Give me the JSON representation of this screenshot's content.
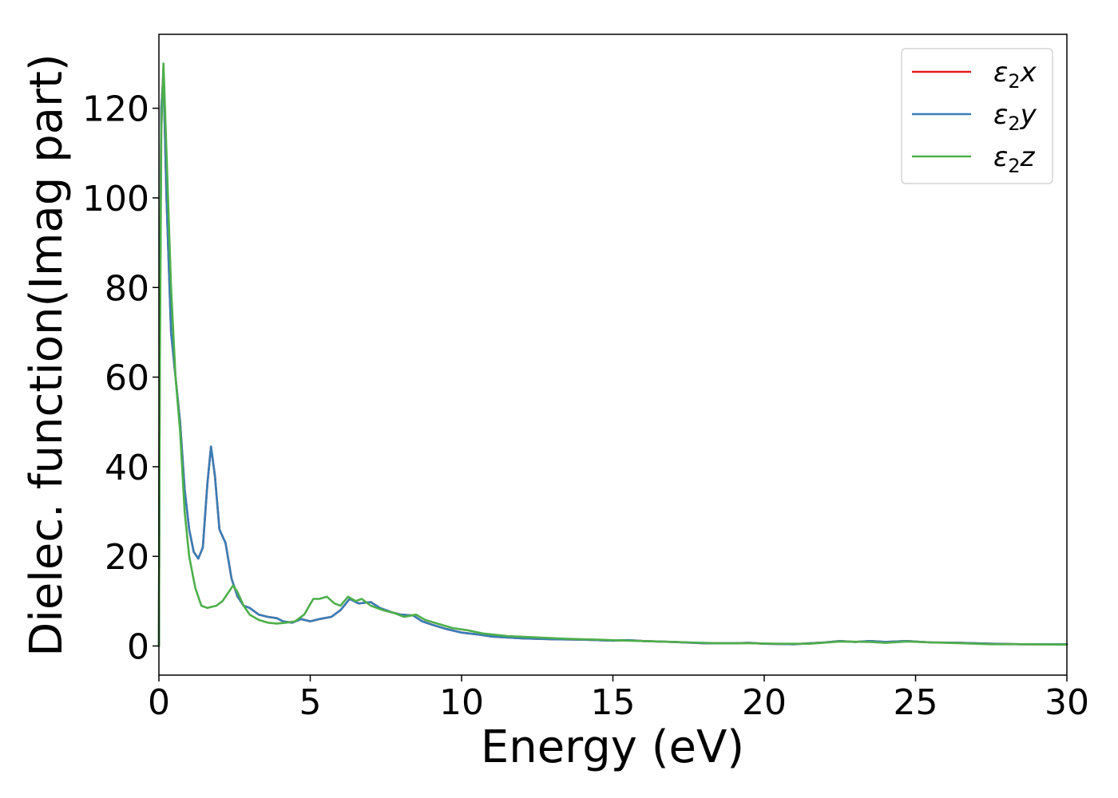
{
  "chart_data": {
    "type": "line",
    "title": "",
    "xlabel": "Energy (eV)",
    "ylabel": "Dielec. function(Imag part)",
    "xlim": [
      0,
      30
    ],
    "ylim": [
      -6.5,
      136.5
    ],
    "xticks": [
      0,
      5,
      10,
      15,
      20,
      25,
      30
    ],
    "xtick_labels": [
      "0",
      "5",
      "10",
      "15",
      "20",
      "25",
      "30"
    ],
    "yticks": [
      0,
      20,
      40,
      60,
      80,
      100,
      120
    ],
    "ytick_labels": [
      "0",
      "20",
      "40",
      "60",
      "80",
      "100",
      "120"
    ],
    "grid": false,
    "legend_position": "top-right",
    "series": [
      {
        "name": "ε2x",
        "legend_main": "ε",
        "legend_sub": "2",
        "legend_suffix": "x",
        "color": "#e41a1c",
        "x": [
          0,
          0.03,
          0.08,
          0.15,
          0.25,
          0.4,
          0.55,
          0.7,
          0.85,
          1.0,
          1.15,
          1.3,
          1.45,
          1.6,
          1.72,
          1.85,
          2.0,
          2.2,
          2.4,
          2.6,
          2.8,
          3.0,
          3.3,
          3.6,
          3.9,
          4.1,
          4.4,
          4.7,
          5.0,
          5.3,
          5.7,
          6.0,
          6.3,
          6.6,
          7.0,
          7.3,
          7.7,
          8.0,
          8.4,
          8.7,
          9.0,
          9.5,
          10.0,
          10.5,
          11.0,
          12.0,
          13.0,
          14.0,
          15.0,
          15.5,
          16.0,
          17.0,
          18.0,
          19.0,
          19.5,
          20.0,
          21.0,
          22.0,
          22.5,
          23.0,
          23.5,
          24.0,
          24.7,
          25.5,
          26.5,
          27.5,
          28.5,
          30.0
        ],
        "y": [
          0,
          70,
          120,
          128,
          100,
          70,
          60,
          50,
          35,
          26,
          21,
          19.5,
          22,
          36,
          44.5,
          38,
          26,
          23,
          15,
          11,
          9,
          8.5,
          7,
          6.5,
          6.2,
          5.5,
          5.2,
          6,
          5.5,
          6,
          6.5,
          8,
          10.5,
          9.5,
          9.8,
          8.5,
          7.5,
          7,
          6.8,
          5.5,
          4.8,
          3.8,
          3,
          2.6,
          2.1,
          1.7,
          1.5,
          1.4,
          1.2,
          1.3,
          1.1,
          0.9,
          0.6,
          0.6,
          0.7,
          0.5,
          0.4,
          0.8,
          1.1,
          0.9,
          1.1,
          0.9,
          1.1,
          0.8,
          0.7,
          0.5,
          0.4,
          0.4
        ]
      },
      {
        "name": "ε2y",
        "legend_main": "ε",
        "legend_sub": "2",
        "legend_suffix": "y",
        "color": "#377eb8",
        "x": [
          0,
          0.03,
          0.08,
          0.15,
          0.25,
          0.4,
          0.55,
          0.7,
          0.85,
          1.0,
          1.15,
          1.3,
          1.45,
          1.6,
          1.72,
          1.85,
          2.0,
          2.2,
          2.4,
          2.6,
          2.8,
          3.0,
          3.3,
          3.6,
          3.9,
          4.1,
          4.4,
          4.7,
          5.0,
          5.3,
          5.7,
          6.0,
          6.3,
          6.6,
          7.0,
          7.3,
          7.7,
          8.0,
          8.4,
          8.7,
          9.0,
          9.5,
          10.0,
          10.5,
          11.0,
          12.0,
          13.0,
          14.0,
          15.0,
          15.5,
          16.0,
          17.0,
          18.0,
          19.0,
          19.5,
          20.0,
          21.0,
          22.0,
          22.5,
          23.0,
          23.5,
          24.0,
          24.7,
          25.5,
          26.5,
          27.5,
          28.5,
          30.0
        ],
        "y": [
          0,
          70,
          120,
          128,
          100,
          70,
          60,
          50,
          35,
          26,
          21,
          19.5,
          22,
          36,
          44.5,
          38,
          26,
          23,
          15,
          11,
          9,
          8.5,
          7,
          6.5,
          6.2,
          5.5,
          5.2,
          6,
          5.5,
          6,
          6.5,
          8,
          10.5,
          9.5,
          9.8,
          8.5,
          7.5,
          7,
          6.8,
          5.5,
          4.8,
          3.8,
          3,
          2.6,
          2.1,
          1.7,
          1.5,
          1.4,
          1.2,
          1.3,
          1.1,
          0.9,
          0.6,
          0.6,
          0.7,
          0.5,
          0.4,
          0.8,
          1.1,
          0.9,
          1.1,
          0.9,
          1.1,
          0.8,
          0.7,
          0.5,
          0.4,
          0.4
        ]
      },
      {
        "name": "ε2z",
        "legend_main": "ε",
        "legend_sub": "2",
        "legend_suffix": "z",
        "color": "#4daf4a",
        "x": [
          0,
          0.03,
          0.08,
          0.15,
          0.25,
          0.4,
          0.55,
          0.7,
          0.85,
          1.0,
          1.2,
          1.4,
          1.6,
          1.9,
          2.1,
          2.3,
          2.45,
          2.6,
          2.8,
          3.0,
          3.3,
          3.6,
          3.9,
          4.2,
          4.5,
          4.8,
          5.1,
          5.3,
          5.55,
          5.8,
          6.0,
          6.25,
          6.5,
          6.7,
          7.0,
          7.4,
          7.8,
          8.1,
          8.5,
          8.8,
          9.2,
          9.7,
          10.2,
          10.7,
          11.5,
          12.5,
          13.5,
          14.5,
          15.5,
          16.5,
          17.5,
          18.5,
          19.5,
          20.5,
          21.5,
          22.5,
          23.5,
          24.0,
          24.7,
          25.5,
          26.5,
          27.5,
          28.5,
          30.0
        ],
        "y": [
          0,
          60,
          115,
          130,
          110,
          80,
          60,
          48,
          30,
          20,
          13,
          9,
          8.5,
          9,
          10,
          12,
          13.5,
          12,
          9,
          7,
          5.8,
          5.2,
          5,
          5.2,
          5.5,
          7,
          10.5,
          10.5,
          11,
          9.5,
          9,
          11,
          10,
          10.5,
          9,
          8,
          7.3,
          6.5,
          7,
          5.8,
          5,
          4,
          3.5,
          2.8,
          2.2,
          1.9,
          1.6,
          1.4,
          1.2,
          1.0,
          0.8,
          0.6,
          0.6,
          0.5,
          0.5,
          1.0,
          0.9,
          0.7,
          1.0,
          0.8,
          0.6,
          0.4,
          0.4,
          0.3
        ]
      }
    ]
  }
}
